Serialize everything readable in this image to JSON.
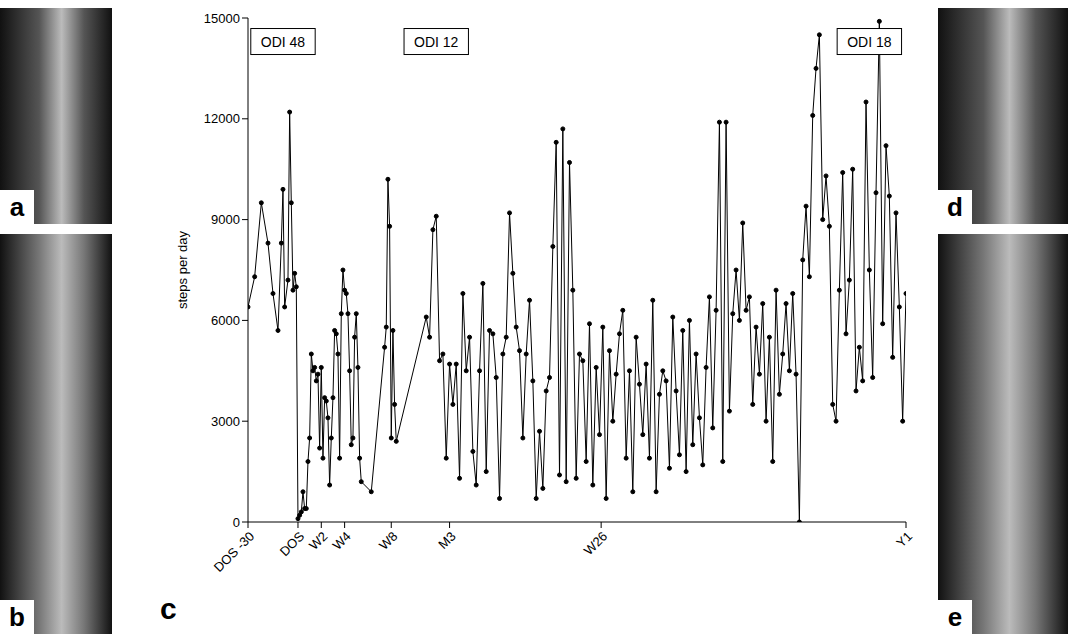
{
  "panel_labels": [
    "a",
    "b",
    "c",
    "d",
    "e"
  ],
  "chart_data": {
    "type": "line",
    "y_label": "steps per day",
    "color": "#000000",
    "marker": "circle",
    "line_style": "solid",
    "grid": false,
    "xlim": [
      -30,
      365
    ],
    "xticks": [
      {
        "value": -30,
        "label": "DOS -30"
      },
      {
        "value": 0,
        "label": "DOS"
      },
      {
        "value": 14,
        "label": "W2"
      },
      {
        "value": 28,
        "label": "W4"
      },
      {
        "value": 56,
        "label": "W8"
      },
      {
        "value": 91,
        "label": "M3"
      },
      {
        "value": 182,
        "label": "W26"
      },
      {
        "value": 365,
        "label": "Y1"
      }
    ],
    "ylim": [
      0,
      15000
    ],
    "yticks": [
      0,
      3000,
      6000,
      9000,
      12000,
      15000
    ],
    "annotations": [
      {
        "text": "ODI 48",
        "x": -9,
        "y": 14300
      },
      {
        "text": "ODI 12",
        "x": 83,
        "y": 14300
      },
      {
        "text": "ODI 18",
        "x": 343,
        "y": 14300
      }
    ],
    "x": [
      -30,
      -26,
      -22,
      -18,
      -15,
      -12,
      -10,
      -9,
      -8,
      -6,
      -5,
      -4,
      -3,
      -2,
      -1,
      0,
      1,
      2,
      3,
      4,
      5,
      6,
      7,
      8,
      9,
      10,
      11,
      12,
      13,
      14,
      15,
      16,
      17,
      18,
      19,
      20,
      21,
      22,
      23,
      24,
      25,
      26,
      27,
      28,
      29,
      30,
      31,
      32,
      33,
      34,
      35,
      36,
      37,
      38,
      44,
      52,
      53,
      54,
      55,
      56,
      57,
      58,
      59,
      77,
      79,
      81,
      83,
      85,
      87,
      89,
      91,
      93,
      95,
      97,
      99,
      101,
      103,
      105,
      107,
      109,
      111,
      113,
      115,
      117,
      119,
      121,
      123,
      125,
      127,
      129,
      131,
      133,
      135,
      137,
      139,
      141,
      143,
      145,
      147,
      149,
      151,
      153,
      155,
      157,
      159,
      161,
      163,
      165,
      167,
      169,
      171,
      173,
      175,
      177,
      179,
      181,
      183,
      185,
      187,
      189,
      191,
      193,
      195,
      197,
      199,
      201,
      203,
      205,
      207,
      209,
      211,
      213,
      215,
      217,
      219,
      221,
      223,
      225,
      227,
      229,
      231,
      233,
      235,
      237,
      239,
      241,
      243,
      245,
      247,
      249,
      251,
      253,
      255,
      257,
      259,
      261,
      263,
      265,
      267,
      269,
      271,
      273,
      275,
      277,
      279,
      281,
      283,
      285,
      287,
      289,
      291,
      293,
      295,
      297,
      299,
      301,
      303,
      305,
      307,
      309,
      311,
      313,
      315,
      317,
      319,
      321,
      323,
      325,
      327,
      329,
      331,
      333,
      335,
      337,
      339,
      341,
      343,
      345,
      347,
      349,
      351,
      353,
      355,
      357,
      359,
      361,
      363,
      365
    ],
    "values": [
      6400,
      7300,
      9500,
      8300,
      6800,
      5700,
      8300,
      9900,
      6400,
      7200,
      12200,
      9500,
      6900,
      7400,
      7000,
      100,
      200,
      300,
      900,
      400,
      400,
      1800,
      2500,
      5000,
      4500,
      4600,
      4200,
      4400,
      2200,
      4600,
      1900,
      3700,
      3600,
      3100,
      1100,
      2500,
      3700,
      5700,
      5600,
      5000,
      1900,
      6200,
      7500,
      6900,
      6800,
      6200,
      4500,
      2300,
      2500,
      5500,
      6200,
      4600,
      1900,
      1200,
      900,
      5200,
      5800,
      10200,
      8800,
      2500,
      5700,
      3500,
      2400,
      6100,
      5500,
      8700,
      9100,
      4800,
      5000,
      1900,
      4700,
      3500,
      4700,
      1300,
      6800,
      4500,
      5500,
      2100,
      1100,
      4500,
      7100,
      1500,
      5700,
      5600,
      4300,
      700,
      5000,
      5500,
      9200,
      7400,
      5800,
      5100,
      2500,
      5000,
      6600,
      4200,
      700,
      2700,
      1000,
      3900,
      4300,
      8200,
      11300,
      1400,
      11700,
      1200,
      10700,
      6900,
      1300,
      5000,
      4800,
      1800,
      5900,
      1100,
      4600,
      2600,
      5800,
      700,
      5100,
      3000,
      4400,
      5600,
      6300,
      1900,
      4500,
      900,
      5500,
      4100,
      2600,
      4700,
      1900,
      6600,
      900,
      3800,
      4500,
      4200,
      1600,
      6100,
      3900,
      2000,
      5700,
      1500,
      6000,
      2300,
      5000,
      3100,
      1700,
      4600,
      6700,
      2800,
      6300,
      11900,
      1800,
      11900,
      3300,
      6200,
      7500,
      6000,
      8900,
      6300,
      6700,
      3500,
      5800,
      4400,
      6500,
      3000,
      5500,
      1800,
      6900,
      3800,
      5000,
      6500,
      4500,
      6800,
      4400,
      0,
      7800,
      9400,
      7300,
      12100,
      13500,
      14500,
      9000,
      10300,
      8800,
      3500,
      3000,
      6900,
      10400,
      5600,
      7200,
      10500,
      3900,
      5200,
      4200,
      12500,
      7500,
      4300,
      9800,
      14900,
      5900,
      11200,
      9700,
      4900,
      9200,
      6400,
      3000,
      6800
    ]
  }
}
